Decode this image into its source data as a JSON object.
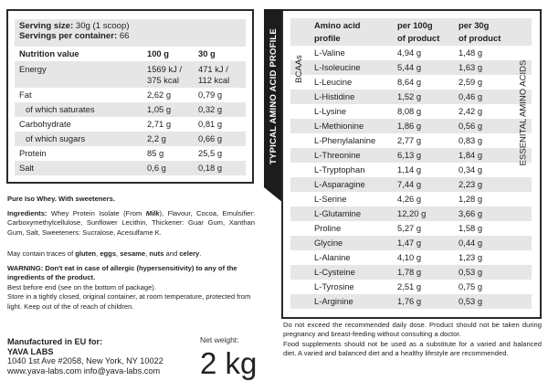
{
  "nutrition": {
    "serving_size_label": "Serving size:",
    "serving_size": "30g (1 scoop)",
    "servings_label": "Servings per container:",
    "servings": "66",
    "headers": [
      "Nutrition value",
      "100 g",
      "30 g"
    ],
    "rows": [
      {
        "name": "Energy",
        "v100": "1569 kJ /",
        "v100b": "375 kcal",
        "v30": "471 kJ /",
        "v30b": "112 kcal"
      },
      {
        "name": "Fat",
        "v100": "2,62 g",
        "v30": "0,79 g"
      },
      {
        "name": "of which saturates",
        "v100": "1,05 g",
        "v30": "0,32 g"
      },
      {
        "name": "Carbohydrate",
        "v100": "2,71 g",
        "v30": "0,81 g"
      },
      {
        "name": "of which sugars",
        "v100": "2,2 g",
        "v30": "0,66 g"
      },
      {
        "name": "Protein",
        "v100": "85 g",
        "v30": "25,5 g"
      },
      {
        "name": "Salt",
        "v100": "0,6 g",
        "v30": "0,18 g"
      }
    ]
  },
  "product_line": "Pure Iso Whey. With sweeteners.",
  "ingredients": {
    "label": "Ingredients:",
    "pre": " Whey Protein Isolate (From ",
    "milk": "Milk",
    "post": "), Flavour, Cocoa, Emulsifier: Carboxymethylcellulose, Sunflower Lecithin, Thickener: Guar Gum, Xanthan Gum, Salt, Sweeteners: Sucralose, Acesulfame K."
  },
  "traces": {
    "pre": "May contain traces of ",
    "a": "gluten",
    "b": "eggs",
    "c": "sesame",
    "d": "nuts",
    "and": " and ",
    "e": "celery",
    "end": "."
  },
  "warning": "WARNING: Don't eat in case of allergic (hypersensitivity) to any of the ingredients of the product.",
  "storage": [
    "Best before end (see on the bottom of package).",
    "Store in a tightly closed, original container, at room temperature, protected from light. Keep out of the of reach of children."
  ],
  "manufacturer": {
    "label": "Manufactured in EU for:",
    "name": "YAVA LABS",
    "address": "1040 1st Ave #2058, New York, NY 10022",
    "web": "www.yava-labs.com info@yava-labs.com"
  },
  "net_weight": {
    "label": "Net weight:",
    "value": "2 kg"
  },
  "amino": {
    "tab_title": "TYPICAL AMINO ACID PROFILE",
    "headers": [
      "Amino acid",
      "profile",
      "per 100g",
      "of product",
      "per 30g",
      "of product"
    ],
    "bcaa_label": "BCAAs",
    "essential_label": "ESSENITAL AMINO ACIDS",
    "rows": [
      [
        "L-Valine",
        "4,94 g",
        "1,48 g"
      ],
      [
        "L-Isoleucine",
        "5,44 g",
        "1,63 g"
      ],
      [
        "L-Leucine",
        "8,64 g",
        "2,59 g"
      ],
      [
        "L-Histidine",
        "1,52 g",
        "0,46 g"
      ],
      [
        "L-Lysine",
        "8,08 g",
        "2,42 g"
      ],
      [
        "L-Methionine",
        "1,86 g",
        "0,56 g"
      ],
      [
        "L-Phenylalanine",
        "2,77 g",
        "0,83 g"
      ],
      [
        "L-Threonine",
        "6,13 g",
        "1,84 g"
      ],
      [
        "L-Tryptophan",
        "1,14 g",
        "0,34 g"
      ],
      [
        "L-Asparagine",
        "7,44 g",
        "2,23 g"
      ],
      [
        "L-Serine",
        "4,26 g",
        "1,28 g"
      ],
      [
        "L-Glutamine",
        "12,20 g",
        "3,66 g"
      ],
      [
        "Proline",
        "5,27 g",
        "1,58 g"
      ],
      [
        "Glycine",
        "1,47 g",
        "0,44 g"
      ],
      [
        "L-Alanine",
        "4,10 g",
        "1,23 g"
      ],
      [
        "L-Cysteine",
        "1,78 g",
        "0,53 g"
      ],
      [
        "L-Tyrosine",
        "2,51 g",
        "0,75 g"
      ],
      [
        "L-Arginine",
        "1,76 g",
        "0,53 g"
      ]
    ]
  },
  "disclaimer": [
    "Do not exceed the recommended daily dose. Product should not be taken during pregnancy and breast-feeding without consulting a doctor.",
    "Food supplements should not be used as a substitute for a varied and balanced diet. A varied and balanced diet and a healthy lifestyle are recommended."
  ]
}
